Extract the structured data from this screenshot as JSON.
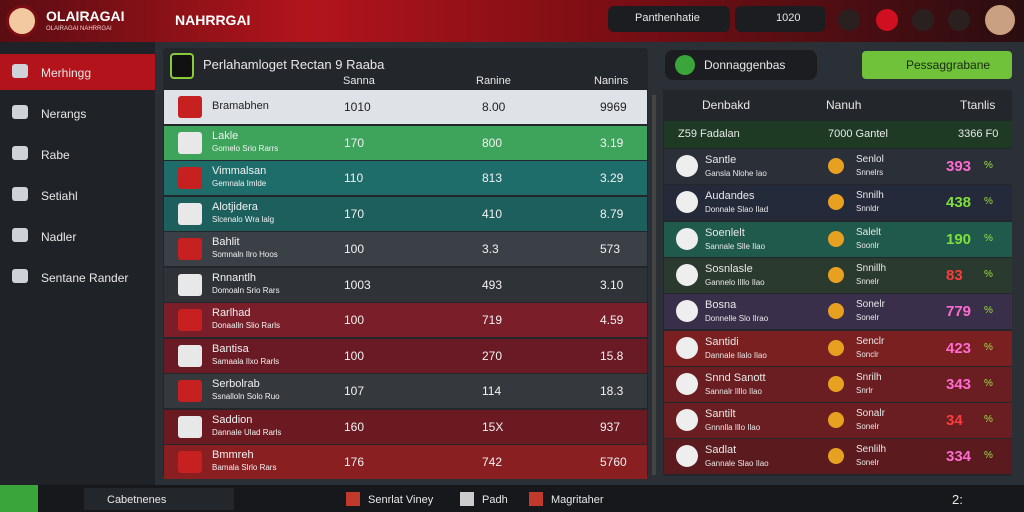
{
  "header": {
    "logo": "OLAIRAGAI",
    "logo_sub": "OLAIRAGAI NAHRRGAI",
    "title": "NAHRRGAI",
    "search": "Panthenhatie",
    "counter": "1020"
  },
  "sidebar": {
    "items": [
      "Merhingg",
      "Nerangs",
      "Rabe",
      "Setiahl",
      "Nadler",
      "Sentane Rander"
    ]
  },
  "left_panel": {
    "title": "Perlahamloget Rectan 9 Raaba",
    "columns": [
      "Sanna",
      "Ranine",
      "Nanins"
    ],
    "rows": [
      [
        "Bramabhen",
        "",
        "1010",
        "8.00",
        "9969"
      ],
      [
        "Lakle",
        "Gomelo Srio Rarrs",
        "170",
        "800",
        "3.19"
      ],
      [
        "Vimmalsan",
        "Gemnala Imlde",
        "110",
        "813",
        "3.29"
      ],
      [
        "Alotjidera",
        "Slcenalo Wra lalg",
        "170",
        "410",
        "8.79"
      ],
      [
        "Bahlit",
        "Somnaln Ilro Hoos",
        "100",
        "3.3",
        "573"
      ],
      [
        "Rnnantlh",
        "Domoaln Srio Rars",
        "1003",
        "493",
        "3.10"
      ],
      [
        "Rarlhad",
        "Donaalln Slio Rarls",
        "100",
        "719",
        "4.59"
      ],
      [
        "Bantisa",
        "Samaala Ilxo Rarls",
        "100",
        "270",
        "15.8"
      ],
      [
        "Serbolrab",
        "Ssnalloln Solo Ruo",
        "107",
        "114",
        "18.3"
      ],
      [
        "Saddion",
        "Dannale Ulad Rarls",
        "160",
        "15X",
        "937"
      ],
      [
        "Bmmreh",
        "Bamala Slrlo Rars",
        "176",
        "742",
        "5760"
      ]
    ]
  },
  "right_panel": {
    "title": "Donnaggenbas",
    "button": "Pessaggrabane",
    "columns": [
      "Denbakd",
      "Nanuh",
      "Ttanlis"
    ],
    "summary": [
      "Z59 Fadalan",
      "7000 Gantel",
      "3366 F0"
    ],
    "rows": [
      [
        "Santle",
        "Gansla Nlohe Iao",
        "Senlol",
        "Snnelrs",
        "393",
        "%"
      ],
      [
        "Audandes",
        "Donnale Slao Ilad",
        "Snnilh",
        "Snnldr",
        "438",
        "%"
      ],
      [
        "Soenlelt",
        "Sannale Slle Ilao",
        "Salelt",
        "Soonlr",
        "190",
        "%"
      ],
      [
        "Sosnlasle",
        "Gannelo Illlo Ilao",
        "Snnillh",
        "Snnelr",
        "83",
        "%"
      ],
      [
        "Bosna",
        "Donnelle Slo Ilrao",
        "Sonelr",
        "Sonelr",
        "779",
        "%"
      ],
      [
        "Santidi",
        "Dannale Ilalo Ilao",
        "Senclr",
        "Sonclr",
        "423",
        "%"
      ],
      [
        "Snnd Sanott",
        "Sannalr Illlo Ilao",
        "Snrilh",
        "Snrlr",
        "343",
        "%"
      ],
      [
        "Santilt",
        "Gnnnlla Illo Ilao",
        "Sonalr",
        "Sonelr",
        "34",
        "%"
      ],
      [
        "Sadlat",
        "Gannale Slao Ilao",
        "Senlilh",
        "Sonelr",
        "334",
        "%"
      ]
    ]
  },
  "taskbar": {
    "items": [
      "Cabetnenes",
      "Senrlat Viney",
      "Padh",
      "Magritaher"
    ],
    "clock": "2:"
  }
}
